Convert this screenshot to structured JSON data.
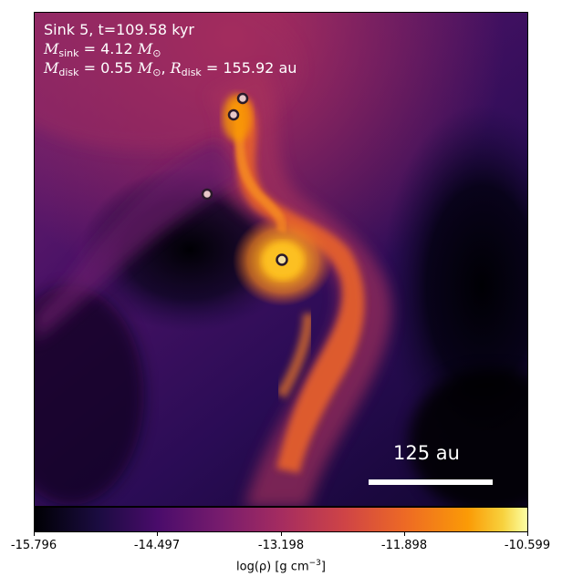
{
  "annotation": {
    "line1": "Sink 5, t=109.58 kyr",
    "m_sink_symbol": "M",
    "m_sink_sub": "sink",
    "m_sink_value": " = 4.12 ",
    "m_sink_unit": "M",
    "m_sink_unit_sub": "⊙",
    "m_disk_symbol": "M",
    "m_disk_sub": "disk",
    "m_disk_value": " = 0.55 ",
    "m_disk_unit": "M",
    "m_disk_unit_sub": "⊙",
    "r_disk_symbol": "R",
    "r_disk_sub": "disk",
    "r_disk_value": " = 155.92 au"
  },
  "scalebar": {
    "label": "125 au"
  },
  "colorbar": {
    "ticks": [
      "-15.796",
      "-14.497",
      "-13.198",
      "-11.898",
      "-10.599"
    ],
    "label_main": "log(ρ) [g cm",
    "label_exp": "−3",
    "label_end": "]",
    "colormap": "inferno"
  },
  "colors": {
    "background_top": "#5a1a6c",
    "background_dark": "#03000a",
    "filament": "#ed6a25",
    "core": "#fcb515",
    "sink_fill": "#e8c8c8",
    "sink_edge": "#2a1a2a"
  },
  "sinks": [
    "primary-sink",
    "companion-sink",
    "companion-sink",
    "companion-sink"
  ]
}
